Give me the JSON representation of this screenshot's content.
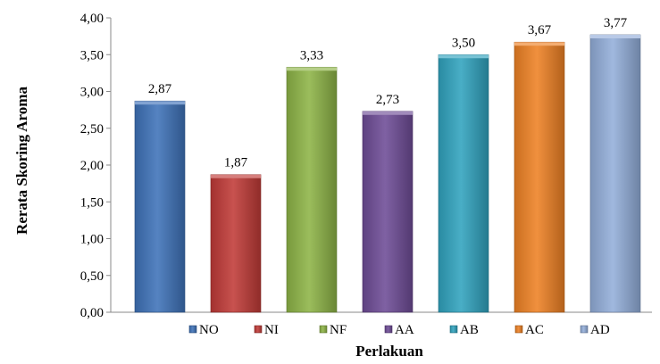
{
  "chart_data": {
    "type": "bar",
    "categories": [
      "NO",
      "NI",
      "NF",
      "AA",
      "AB",
      "AC",
      "AD"
    ],
    "values": [
      2.87,
      1.87,
      3.33,
      2.73,
      3.5,
      3.67,
      3.77
    ],
    "value_labels": [
      "2,87",
      "1,87",
      "3,33",
      "2,73",
      "3,50",
      "3,67",
      "3,77"
    ],
    "colors": [
      "#3E72B9",
      "#C03A37",
      "#8DB446",
      "#6E4C97",
      "#30A3BE",
      "#EE8124",
      "#93AEDA"
    ],
    "xlabel": "Perlakuan",
    "ylabel": "Rerata Skoring  Aroma",
    "ylim": [
      0,
      4
    ],
    "y_ticks": [
      "0,00",
      "0,50",
      "1,00",
      "1,50",
      "2,00",
      "2,50",
      "3,00",
      "3,50",
      "4,00"
    ],
    "grid": false,
    "legend": "bottom"
  }
}
